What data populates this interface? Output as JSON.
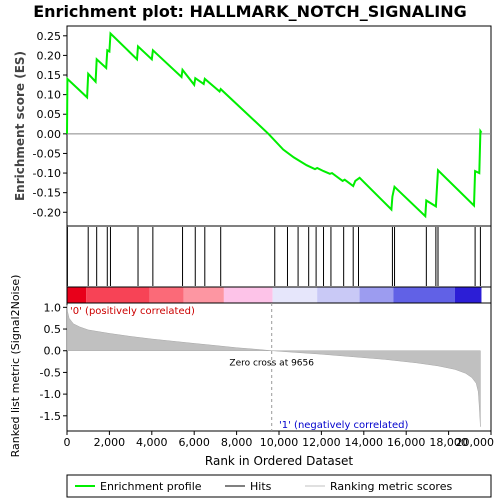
{
  "chart_data": {
    "type": "line",
    "title": "Enrichment plot: HALLMARK_NOTCH_SIGNALING",
    "es_panel": {
      "ylabel": "Enrichment score (ES)",
      "ylim": [
        -0.235,
        0.275
      ],
      "yticks": [
        -0.2,
        -0.15,
        -0.1,
        -0.05,
        0.0,
        0.05,
        0.1,
        0.15,
        0.2,
        0.25
      ],
      "ytick_labels": [
        "-0.20",
        "-0.15",
        "-0.10",
        "-0.05",
        "0.00",
        "0.05",
        "0.10",
        "0.15",
        "0.20",
        "0.25"
      ],
      "series_name": "Enrichment profile",
      "color": "#00ee00",
      "x": [
        0,
        20,
        950,
        1000,
        1350,
        1400,
        1850,
        1900,
        2000,
        2050,
        3300,
        3350,
        4000,
        4050,
        5400,
        5450,
        6000,
        6050,
        6450,
        6500,
        7200,
        7250,
        9500,
        10200,
        10700,
        11300,
        11700,
        11800,
        12100,
        12400,
        12500,
        13000,
        13100,
        13500,
        13600,
        13800,
        15300,
        15350,
        15450,
        16900,
        16950,
        17400,
        17450,
        17500,
        19200,
        19250,
        19450,
        19500,
        19550
      ],
      "y": [
        0.0,
        0.14,
        0.093,
        0.153,
        0.133,
        0.19,
        0.168,
        0.213,
        0.21,
        0.256,
        0.19,
        0.223,
        0.19,
        0.213,
        0.145,
        0.163,
        0.125,
        0.142,
        0.127,
        0.14,
        0.108,
        0.114,
        0.0,
        -0.04,
        -0.06,
        -0.08,
        -0.09,
        -0.087,
        -0.095,
        -0.102,
        -0.1,
        -0.12,
        -0.117,
        -0.133,
        -0.12,
        -0.112,
        -0.193,
        -0.16,
        -0.135,
        -0.21,
        -0.17,
        -0.185,
        -0.14,
        -0.093,
        -0.183,
        -0.095,
        -0.1,
        0.007,
        0.003
      ],
      "zero_line": 0.0
    },
    "hits": {
      "series_name": "Hits",
      "positions": [
        20,
        1000,
        1400,
        1900,
        2050,
        3350,
        4050,
        5450,
        6050,
        6500,
        7250,
        9800,
        10400,
        10900,
        11400,
        11750,
        12100,
        12450,
        13050,
        13500,
        13750,
        15350,
        15450,
        16950,
        17400,
        17500,
        19250,
        19500
      ]
    },
    "metric_panel": {
      "ylabel": "Ranked list metric (Signal2Noise)",
      "series_name": "Ranking metric scores",
      "ylim": [
        -1.85,
        1.1
      ],
      "yticks": [
        -1.5,
        -1.0,
        -0.5,
        0.0,
        0.5,
        1.0
      ],
      "ytick_labels": [
        "-1.5",
        "-1.0",
        "-0.5",
        "0.0",
        "0.5",
        "1.0"
      ],
      "profile_x": [
        0,
        30,
        100,
        300,
        600,
        1000,
        2000,
        3000,
        4000,
        5000,
        6000,
        7000,
        8000,
        9000,
        9656,
        10500,
        12000,
        13500,
        15000,
        16500,
        17500,
        18300,
        18800,
        19100,
        19300,
        19400,
        19450,
        19500
      ],
      "profile_y": [
        1.05,
        0.9,
        0.75,
        0.62,
        0.55,
        0.48,
        0.4,
        0.33,
        0.27,
        0.22,
        0.17,
        0.12,
        0.07,
        0.03,
        0.0,
        -0.03,
        -0.08,
        -0.14,
        -0.2,
        -0.28,
        -0.35,
        -0.43,
        -0.52,
        -0.62,
        -0.75,
        -0.95,
        -1.3,
        -1.75
      ],
      "zero_cross_label": "Zero cross at 9656",
      "zero_cross_x": 9656,
      "pos_label": "'0' (positively correlated)",
      "neg_label": "'1' (negatively correlated)"
    },
    "x_axis": {
      "xlabel": "Rank in Ordered Dataset",
      "xlim": [
        0,
        20000
      ],
      "xticks": [
        0,
        2000,
        4000,
        6000,
        8000,
        10000,
        12000,
        14000,
        16000,
        18000,
        20000
      ],
      "xtick_labels": [
        "0",
        "2,000",
        "4,000",
        "6,000",
        "8,000",
        "10,000",
        "12,000",
        "14,000",
        "16,000",
        "18,000",
        "20,000"
      ],
      "n_genes": 19550
    },
    "heatmap_bar": {
      "segments": [
        {
          "x0": 0,
          "x1": 900,
          "color": "#e8001a"
        },
        {
          "x0": 900,
          "x1": 3900,
          "color": "#f74356"
        },
        {
          "x0": 3900,
          "x1": 5500,
          "color": "#fb6a78"
        },
        {
          "x0": 5500,
          "x1": 7400,
          "color": "#fd96a2"
        },
        {
          "x0": 7400,
          "x1": 9700,
          "color": "#fdc3e8"
        },
        {
          "x0": 9700,
          "x1": 11800,
          "color": "#e6e6fb"
        },
        {
          "x0": 11800,
          "x1": 13800,
          "color": "#c9c9f6"
        },
        {
          "x0": 13800,
          "x1": 15400,
          "color": "#9c9cf0"
        },
        {
          "x0": 15400,
          "x1": 18300,
          "color": "#6161e6"
        },
        {
          "x0": 18300,
          "x1": 19550,
          "color": "#2c1ed6"
        }
      ]
    },
    "legend": [
      {
        "label": "Enrichment profile",
        "color": "#00ee00"
      },
      {
        "label": "Hits",
        "color": "#000000"
      },
      {
        "label": "Ranking metric scores",
        "color": "#c0c0c0"
      }
    ]
  }
}
